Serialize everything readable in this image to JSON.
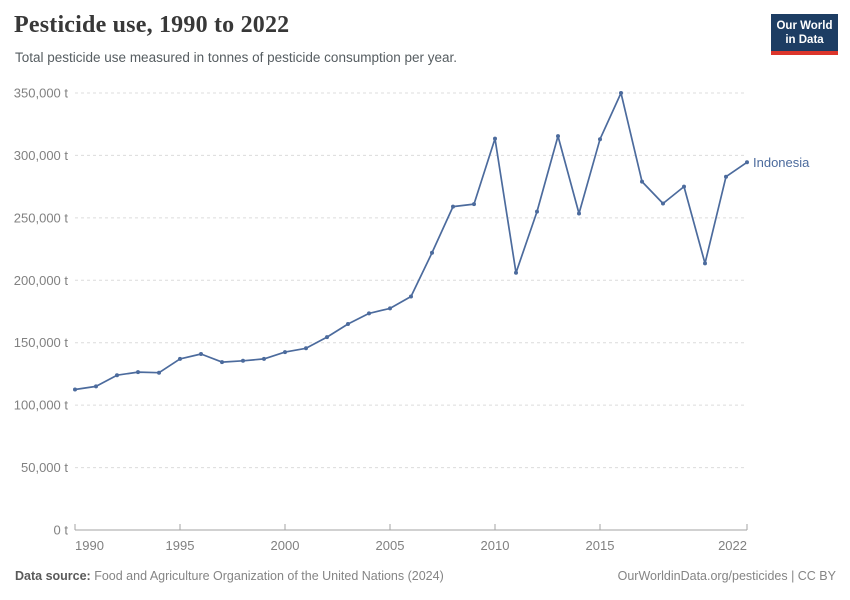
{
  "header": {
    "title": "Pesticide use, 1990 to 2022",
    "subtitle": "Total pesticide use measured in tonnes of pesticide consumption per year.",
    "logo": {
      "line1": "Our World",
      "line2": "in Data",
      "bg": "#1d3d63",
      "bar": "#dc352b"
    }
  },
  "theme": {
    "background": "#ffffff",
    "grid_color": "#dcdcdc",
    "axis_color": "#a3a3a3",
    "tick_label_color": "#818181",
    "line_color": "#4c6b9d"
  },
  "chart_data": {
    "type": "line",
    "title": "Pesticide use, 1990 to 2022",
    "unit": "tonnes",
    "xlim": [
      1990,
      2022
    ],
    "ylim": [
      0,
      350000
    ],
    "grid": "horizontal-dashed",
    "legend_position": "end-of-line-label",
    "x_ticks": [
      1990,
      1995,
      2000,
      2005,
      2010,
      2015,
      2022
    ],
    "y_ticks": [
      0,
      50000,
      100000,
      150000,
      200000,
      250000,
      300000,
      350000
    ],
    "y_tick_labels": [
      "0 t",
      "50,000 t",
      "100,000 t",
      "150,000 t",
      "200,000 t",
      "250,000 t",
      "300,000 t",
      "350,000 t"
    ],
    "series": [
      {
        "name": "Indonesia",
        "color": "#4c6b9d",
        "x": [
          1990,
          1991,
          1992,
          1993,
          1994,
          1995,
          1996,
          1997,
          1998,
          1999,
          2000,
          2001,
          2002,
          2003,
          2004,
          2005,
          2006,
          2007,
          2008,
          2009,
          2010,
          2011,
          2012,
          2013,
          2014,
          2015,
          2016,
          2017,
          2018,
          2019,
          2020,
          2021,
          2022
        ],
        "values": [
          112500,
          115000,
          124000,
          126500,
          126000,
          137000,
          141000,
          134500,
          135500,
          137000,
          142500,
          145500,
          154500,
          165000,
          173500,
          177500,
          187000,
          222000,
          259000,
          261000,
          313500,
          206000,
          255000,
          315500,
          253500,
          313000,
          350000,
          279000,
          261500,
          275000,
          213500,
          283000,
          294500
        ]
      }
    ]
  },
  "footer": {
    "source_label": "Data source:",
    "source_text": "Food and Agriculture Organization of the United Nations (2024)",
    "right_text": "OurWorldinData.org/pesticides | CC BY"
  }
}
